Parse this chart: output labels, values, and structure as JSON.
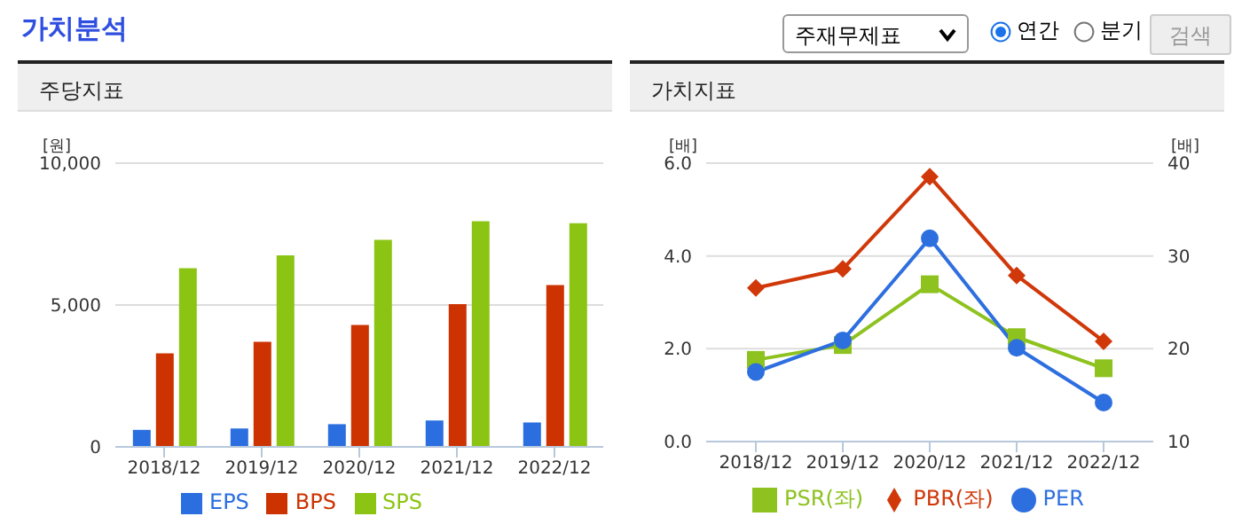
{
  "chart_data": [
    {
      "type": "other",
      "title": "가치분석",
      "annotations": [
        "주재무제표",
        "연간",
        "분기",
        "검색"
      ]
    },
    {
      "type": "bar",
      "title": "주당지표",
      "ylabel": "[원]",
      "categories": [
        "2018/12",
        "2019/12",
        "2020/12",
        "2021/12",
        "2022/12"
      ],
      "series": [
        {
          "name": "EPS",
          "color": "#2a6ee0",
          "values": [
            600,
            650,
            800,
            930,
            860
          ]
        },
        {
          "name": "BPS",
          "color": "#cc3300",
          "values": [
            3300,
            3700,
            4300,
            5030,
            5700
          ]
        },
        {
          "name": "SPS",
          "color": "#8cc414",
          "values": [
            6300,
            6750,
            7300,
            7950,
            7880
          ]
        }
      ],
      "ylim": [
        0,
        10000
      ],
      "yticks": [
        {
          "value": 0,
          "label": "0"
        },
        {
          "value": 5000,
          "label": "5,000"
        },
        {
          "value": 10000,
          "label": "10,000"
        }
      ],
      "grid": "y",
      "legend": "bottom"
    },
    {
      "type": "line",
      "title": "가치지표",
      "ylabel": "[배]",
      "y2label": "[배]",
      "categories": [
        "2018/12",
        "2019/12",
        "2020/12",
        "2021/12",
        "2022/12"
      ],
      "series": [
        {
          "name": "PER",
          "color": "#2e6fe0",
          "axis": "y2",
          "marker": "circle",
          "values": [
            17.5,
            20.9,
            31.9,
            20.1,
            14.2
          ]
        },
        {
          "name": "PBR(좌)",
          "color": "#d0380a",
          "marker": "diamond",
          "values": [
            3.31,
            3.72,
            5.71,
            3.58,
            2.16
          ]
        },
        {
          "name": "PSR(좌)",
          "color": "#8dc21f",
          "marker": "square",
          "values": [
            1.76,
            2.08,
            3.39,
            2.25,
            1.58
          ]
        }
      ],
      "ylim": [
        0,
        6
      ],
      "yticks": [
        {
          "value": 0,
          "label": "0.0"
        },
        {
          "value": 2,
          "label": "2.0"
        },
        {
          "value": 4,
          "label": "4.0"
        },
        {
          "value": 6,
          "label": "6.0"
        }
      ],
      "y2lim": [
        10,
        40
      ],
      "y2ticks": [
        10,
        20,
        30,
        40
      ],
      "grid": "y",
      "legend": "bottom"
    }
  ]
}
